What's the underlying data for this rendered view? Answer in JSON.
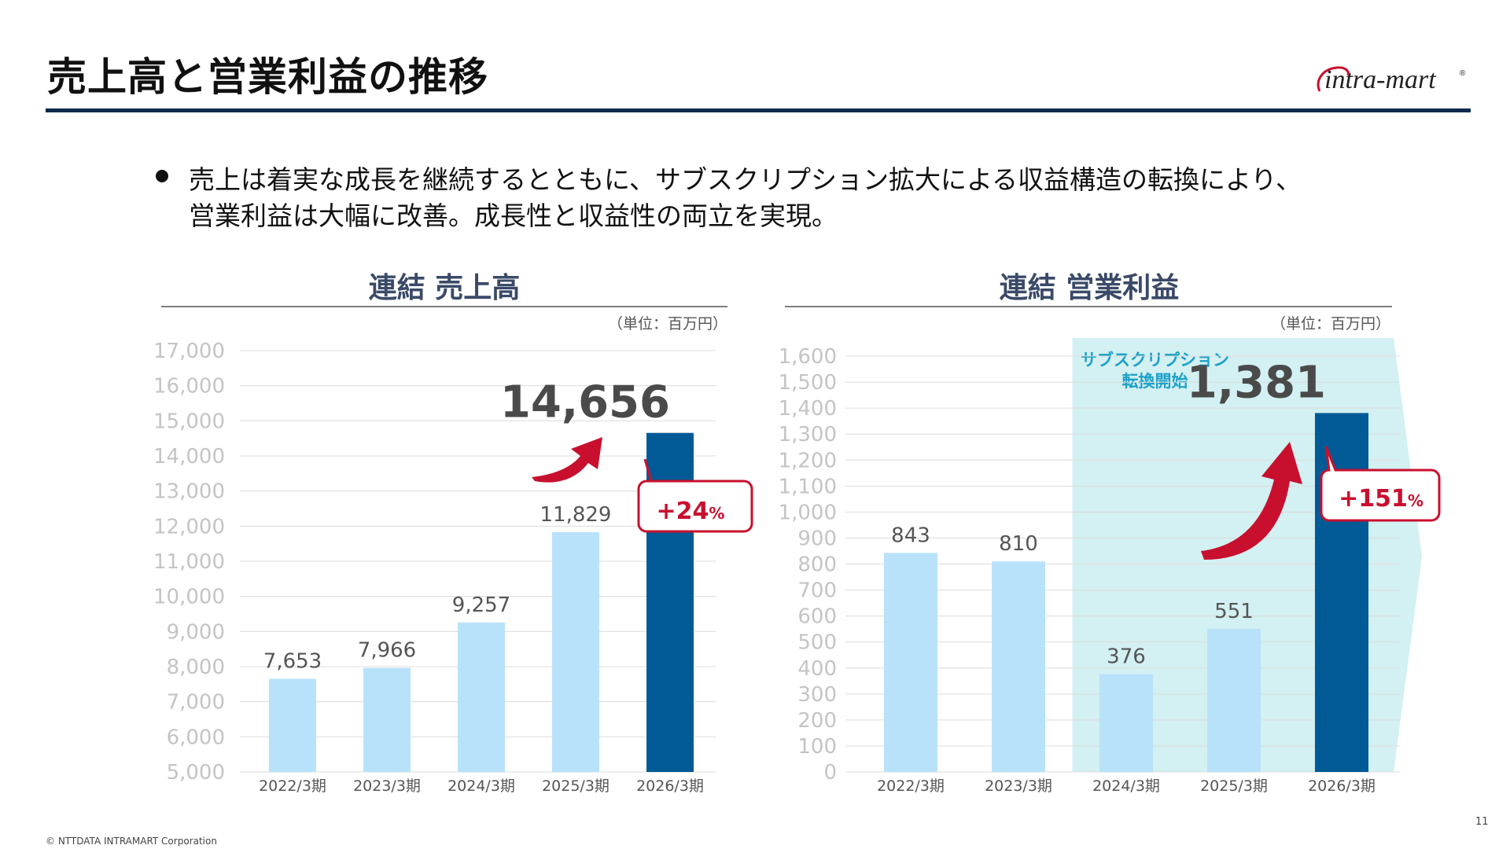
{
  "header": {
    "title": "売上高と営業利益の推移",
    "logo_text": "intra-mart",
    "logo_mark": "®"
  },
  "summary": {
    "line1": "売上は着実な成長を継続するとともに、サブスクリプション拡大による収益構造の転換により、",
    "line2": "営業利益は大幅に改善。成長性と収益性の両立を実現。"
  },
  "colors": {
    "bar_light": "#b8e2fa",
    "bar_highlight": "#005a96",
    "accent_red": "#c8102e",
    "subscription_band": "#d3f0f2",
    "title_rule": "#0e2a4d"
  },
  "chart_data": [
    {
      "type": "bar",
      "title": "連結 売上高",
      "unit": "（単位：百万円）",
      "categories": [
        "2022/3期",
        "2023/3期",
        "2024/3期",
        "2025/3期",
        "2026/3期"
      ],
      "values": [
        7653,
        7966,
        9257,
        11829,
        14656
      ],
      "labels": [
        "7,653",
        "7,966",
        "9,257",
        "11,829",
        "14,656"
      ],
      "highlight_index": 4,
      "ylim": [
        5000,
        17000
      ],
      "yticks": [
        5000,
        6000,
        7000,
        8000,
        9000,
        10000,
        11000,
        12000,
        13000,
        14000,
        15000,
        16000,
        17000
      ],
      "ytick_labels": [
        "5,000",
        "6,000",
        "7,000",
        "8,000",
        "9,000",
        "10,000",
        "11,000",
        "12,000",
        "13,000",
        "14,000",
        "15,000",
        "16,000",
        "17,000"
      ],
      "grid": true,
      "growth_callout": {
        "number": "+24",
        "suffix": "%"
      }
    },
    {
      "type": "bar",
      "title": "連結 営業利益",
      "unit": "（単位：百万円）",
      "categories": [
        "2022/3期",
        "2023/3期",
        "2024/3期",
        "2025/3期",
        "2026/3期"
      ],
      "values": [
        843,
        810,
        376,
        551,
        1381
      ],
      "labels": [
        "843",
        "810",
        "376",
        "551",
        "1,381"
      ],
      "highlight_index": 4,
      "ylim": [
        0,
        1600
      ],
      "yticks": [
        0,
        100,
        200,
        300,
        400,
        500,
        600,
        700,
        800,
        900,
        1000,
        1100,
        1200,
        1300,
        1400,
        1500,
        1600
      ],
      "ytick_labels": [
        "0",
        "100",
        "200",
        "300",
        "400",
        "500",
        "600",
        "700",
        "800",
        "900",
        "1,000",
        "1,100",
        "1,200",
        "1,300",
        "1,400",
        "1,500",
        "1,600"
      ],
      "grid": true,
      "growth_callout": {
        "number": "+151",
        "suffix": "%"
      },
      "annotation": {
        "line1": "サブスクリプション",
        "line2": "転換開始",
        "start_index": 2
      }
    }
  ],
  "footer": {
    "copyright": "© NTTDATA INTRAMART Corporation",
    "page_number": "11"
  }
}
